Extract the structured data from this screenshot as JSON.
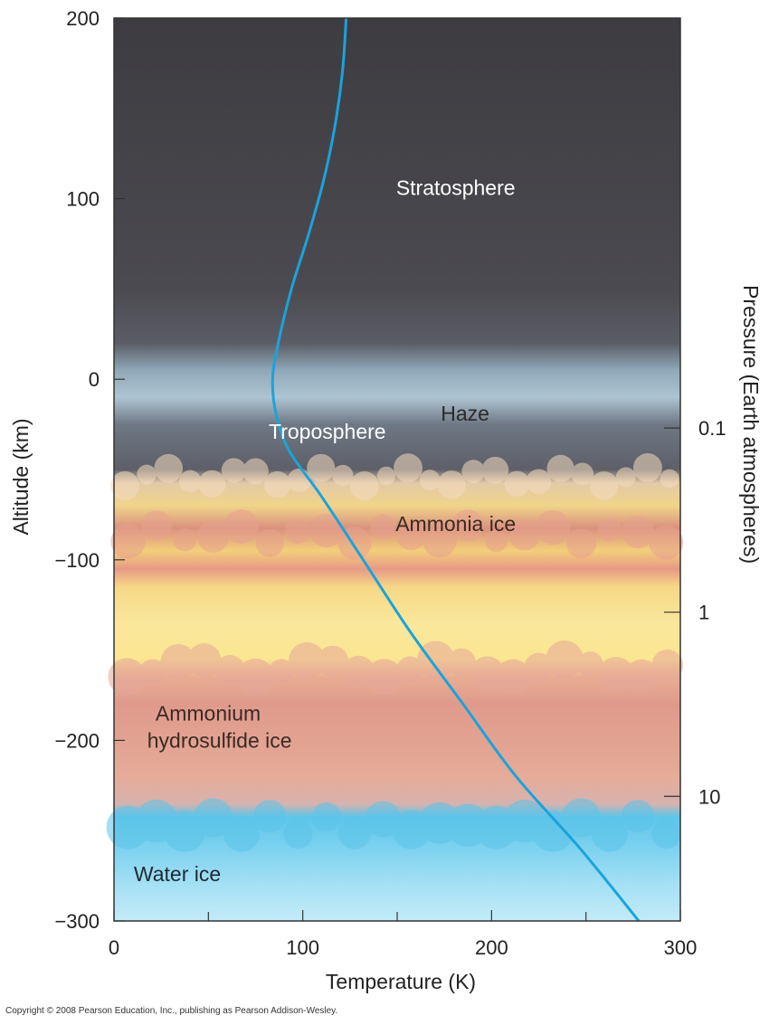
{
  "chart_data": {
    "type": "line",
    "xlabel": "Temperature (K)",
    "ylabel": "Altitude (km)",
    "y2label": "Pressure (Earth atmospheres)",
    "xlim": [
      0,
      300
    ],
    "ylim": [
      -300,
      200
    ],
    "x_ticks": [
      "0",
      "100",
      "200",
      "300"
    ],
    "x_minor_ticks": [
      50,
      150,
      250
    ],
    "y_ticks": [
      "200",
      "100",
      "0",
      "−100",
      "−200",
      "−300"
    ],
    "y2_ticks": [
      {
        "label": "0.1",
        "altitude": -27
      },
      {
        "label": "1",
        "altitude": -129
      },
      {
        "label": "10",
        "altitude": -231
      }
    ],
    "series": [
      {
        "color": "#1aa3dc",
        "points": [
          {
            "x": 123,
            "y": 200
          },
          {
            "x": 121,
            "y": 170
          },
          {
            "x": 117,
            "y": 140
          },
          {
            "x": 111,
            "y": 110
          },
          {
            "x": 103,
            "y": 80
          },
          {
            "x": 94,
            "y": 50
          },
          {
            "x": 87,
            "y": 20
          },
          {
            "x": 84,
            "y": 0
          },
          {
            "x": 86,
            "y": -20
          },
          {
            "x": 93,
            "y": -40
          },
          {
            "x": 110,
            "y": -65
          },
          {
            "x": 132,
            "y": -100
          },
          {
            "x": 157,
            "y": -140
          },
          {
            "x": 185,
            "y": -180
          },
          {
            "x": 213,
            "y": -220
          },
          {
            "x": 247,
            "y": -260
          },
          {
            "x": 278,
            "y": -300
          }
        ]
      }
    ],
    "regions": [
      {
        "label": "Stratosphere",
        "x": 181,
        "y": 106,
        "color": "#ffffff"
      },
      {
        "label": "Haze",
        "x": 186,
        "y": -19,
        "color": "#2a2a2a"
      },
      {
        "label": "Troposphere",
        "x": 113,
        "y": -29,
        "color": "#ffffff"
      },
      {
        "label": "Ammonia ice",
        "x": 181,
        "y": -80,
        "color": "#3a2a22"
      },
      {
        "label": "Ammonium",
        "x": 68,
        "y": -185,
        "color": "#3a2a22"
      },
      {
        "label": "hydrosulfide ice",
        "x": 78,
        "y": -200,
        "color": "#3a2a22"
      },
      {
        "label": "Water ice",
        "x": 45,
        "y": -274,
        "color": "#1e2a33"
      }
    ],
    "grid": false
  },
  "footer": {
    "copyright": "Copyright © 2008 Pearson Education, Inc., publishing as Pearson Addison-Wesley."
  }
}
